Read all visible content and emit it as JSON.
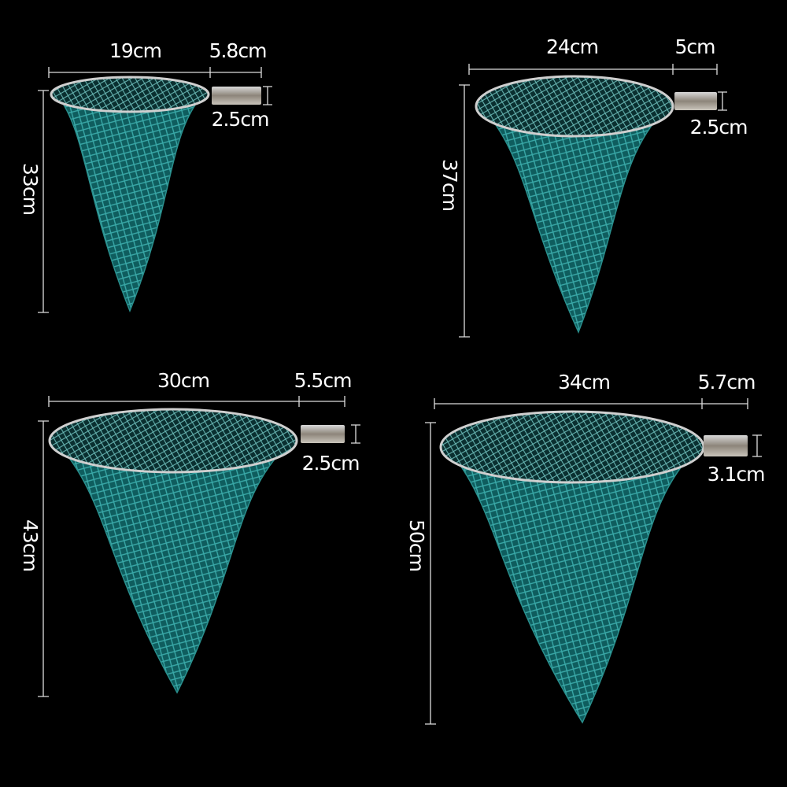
{
  "nets": [
    {
      "width": "19cm",
      "handle_length": "5.8cm",
      "handle_diameter": "2.5cm",
      "height": "33cm"
    },
    {
      "width": "24cm",
      "handle_length": "5cm",
      "handle_diameter": "2.5cm",
      "height": "37cm"
    },
    {
      "width": "30cm",
      "handle_length": "5.5cm",
      "handle_diameter": "2.5cm",
      "height": "43cm"
    },
    {
      "width": "34cm",
      "handle_length": "5.7cm",
      "handle_diameter": "3.1cm",
      "height": "50cm"
    }
  ]
}
